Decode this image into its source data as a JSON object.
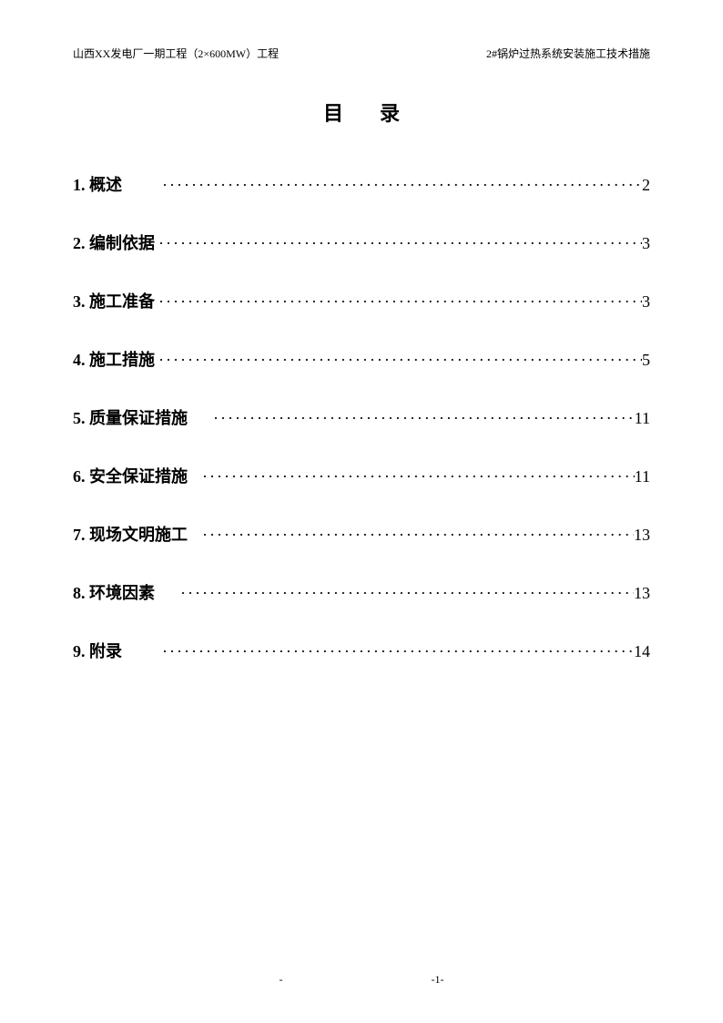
{
  "header": {
    "left": "山西XX发电厂一期工程（2×600MW）工程",
    "right": "2#锅炉过热系统安装施工技术措施"
  },
  "title": "目录",
  "toc": [
    {
      "num": "1.",
      "label": "概述",
      "page": "2",
      "spacing": "wide"
    },
    {
      "num": "2.",
      "label": "编制依据",
      "page": "3",
      "spacing": "none"
    },
    {
      "num": "3.",
      "label": "施工准备",
      "page": "3",
      "spacing": "none"
    },
    {
      "num": "4.",
      "label": "施工措施",
      "page": "5",
      "spacing": "none"
    },
    {
      "num": "5.",
      "label": "质量保证措施",
      "page": "11",
      "spacing": "medium"
    },
    {
      "num": "6.",
      "label": "安全保证措施",
      "page": "11",
      "spacing": "small"
    },
    {
      "num": "7.",
      "label": "现场文明施工",
      "page": "13",
      "spacing": "small"
    },
    {
      "num": "8.",
      "label": "环境因素",
      "page": "13",
      "spacing": "medium"
    },
    {
      "num": "9.",
      "label": "附录",
      "page": "14",
      "spacing": "wide"
    }
  ],
  "footer": {
    "left_mark": "-",
    "page_label": "-1-"
  },
  "colors": {
    "text": "#000000",
    "background": "#ffffff"
  },
  "typography": {
    "header_fontsize": 12,
    "title_fontsize": 22,
    "toc_fontsize": 18,
    "footer_fontsize": 12
  }
}
